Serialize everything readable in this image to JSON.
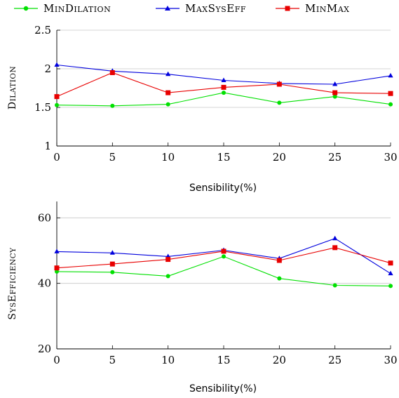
{
  "chart_data": [
    {
      "type": "line",
      "xlabel": "Sensibility(%)",
      "ylabel": "Dilation",
      "x": [
        0,
        5,
        10,
        15,
        20,
        25,
        30
      ],
      "xlim": [
        0,
        30
      ],
      "ylim": [
        1,
        2.5
      ],
      "xticks": [
        "0",
        "5",
        "10",
        "15",
        "20",
        "25",
        "30"
      ],
      "yticks": [
        "1",
        "1.5",
        "2",
        "2.5"
      ],
      "ytick_values": [
        1,
        1.5,
        2,
        2.5
      ],
      "grid": "horizontal",
      "legend": "top",
      "series": [
        {
          "name": "MinDilation",
          "color": "#00e000",
          "marker": "circle",
          "values": [
            1.53,
            1.52,
            1.54,
            1.69,
            1.56,
            1.64,
            1.54
          ]
        },
        {
          "name": "MaxSysEff",
          "color": "#0000dd",
          "marker": "triangle",
          "values": [
            2.05,
            1.97,
            1.93,
            1.85,
            1.81,
            1.8,
            1.91
          ]
        },
        {
          "name": "MinMax",
          "color": "#e80000",
          "marker": "square",
          "values": [
            1.64,
            1.95,
            1.69,
            1.76,
            1.8,
            1.69,
            1.68
          ]
        }
      ]
    },
    {
      "type": "line",
      "xlabel": "Sensibility(%)",
      "ylabel": "SysEfficiency",
      "x": [
        0,
        5,
        10,
        15,
        20,
        25,
        30
      ],
      "xlim": [
        0,
        30
      ],
      "ylim": [
        20,
        65
      ],
      "xticks": [
        "0",
        "5",
        "10",
        "15",
        "20",
        "25",
        "30"
      ],
      "yticks": [
        "20",
        "40",
        "60"
      ],
      "ytick_values": [
        20,
        40,
        60
      ],
      "grid": "horizontal",
      "series": [
        {
          "name": "MinDilation",
          "color": "#00e000",
          "marker": "circle",
          "values": [
            43.6,
            43.4,
            42.2,
            48.2,
            41.5,
            39.4,
            39.2
          ]
        },
        {
          "name": "MaxSysEff",
          "color": "#0000dd",
          "marker": "triangle",
          "values": [
            49.7,
            49.3,
            48.2,
            50.1,
            47.6,
            53.7,
            43.0
          ]
        },
        {
          "name": "MinMax",
          "color": "#e80000",
          "marker": "square",
          "values": [
            44.7,
            45.9,
            47.3,
            49.8,
            47.0,
            50.9,
            46.2
          ]
        }
      ]
    }
  ],
  "legend": {
    "items": [
      {
        "label": "MinDilation",
        "color": "#00e000",
        "marker": "circle"
      },
      {
        "label": "MaxSysEff",
        "color": "#0000dd",
        "marker": "triangle"
      },
      {
        "label": "MinMax",
        "color": "#e80000",
        "marker": "square"
      }
    ]
  }
}
